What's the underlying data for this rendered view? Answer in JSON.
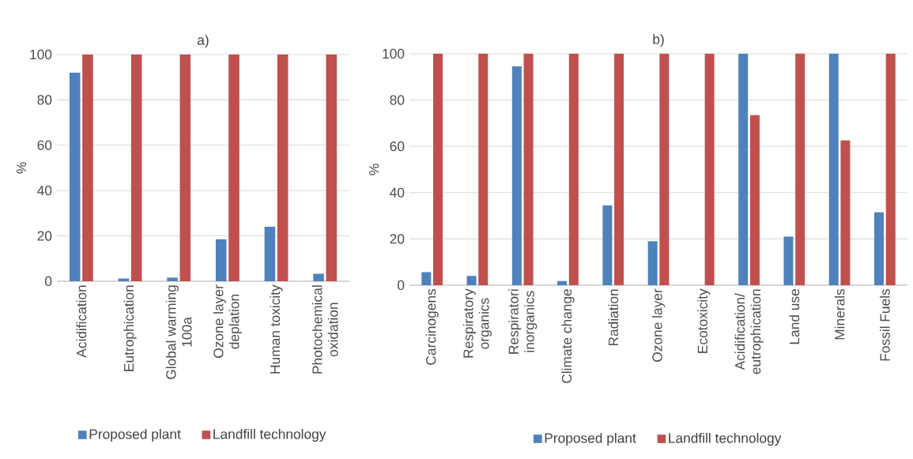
{
  "chart_data": [
    {
      "type": "bar",
      "title": "a)",
      "ylabel": "%",
      "categories": [
        "Acidification",
        "Eutrophication",
        "Global warming 100a",
        "Ozone layer deplation",
        "Human toxicity",
        "Photochemical oxidation"
      ],
      "series": [
        {
          "name": "Proposed plant",
          "color": "#4f81bd",
          "values": [
            92,
            1.2,
            1.6,
            18.5,
            24,
            3.3
          ]
        },
        {
          "name": "Landfill technology",
          "color": "#c0504d",
          "values": [
            100,
            100,
            100,
            100,
            100,
            100
          ]
        }
      ],
      "ylim": [
        0,
        100
      ],
      "yticks": [
        0,
        20,
        40,
        60,
        80,
        100
      ],
      "grid": "y",
      "legend": "bottom"
    },
    {
      "type": "bar",
      "title": "b)",
      "ylabel": "%",
      "categories": [
        "Carcinogens",
        "Respiratory organics",
        "Respiratori inorganics",
        "Climate change",
        "Radiation",
        "Ozone layer",
        "Ecotoxicity",
        "Acidification/ eutrophication",
        "Land use",
        "Minerals",
        "Fossil Fuels"
      ],
      "series": [
        {
          "name": "Proposed plant",
          "color": "#4f81bd",
          "values": [
            5.6,
            4,
            94.5,
            1.8,
            34.5,
            19,
            0,
            100,
            21,
            100,
            31.5
          ]
        },
        {
          "name": "Landfill technology",
          "color": "#c0504d",
          "values": [
            100,
            100,
            100,
            100,
            100,
            100,
            100,
            73.5,
            100,
            62.5,
            100
          ]
        }
      ],
      "ylim": [
        0,
        100
      ],
      "yticks": [
        0,
        20,
        40,
        60,
        80,
        100
      ],
      "grid": "y",
      "legend": "bottom"
    }
  ]
}
